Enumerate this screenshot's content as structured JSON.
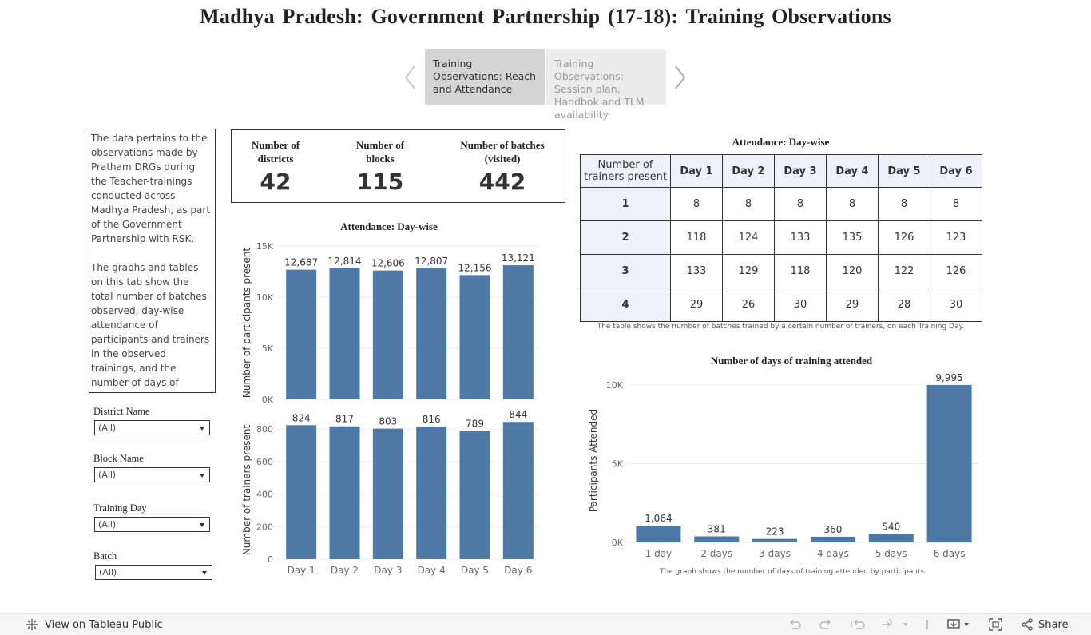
{
  "title": "Madhya Pradesh: Government Partnership (17-18): Training Observations",
  "story": {
    "points": [
      {
        "label": "Training Observations: Reach and Attendance"
      },
      {
        "label": "Training Observations: Session plan, Handbok and TLM availability"
      }
    ],
    "prev_icon": "chevron-left-icon",
    "next_icon": "chevron-right-icon"
  },
  "description": {
    "p1": "The data pertains to the observations made by Pratham DRGs during the Teacher-trainings conducted across Madhya Pradesh, as part of the Government Partnership with RSK.",
    "p2": "The graphs and tables on this tab show the total number of batches observed, day-wise attendance of participants and trainers in the observed trainings, and the number of days of training attended by the participants."
  },
  "filters": [
    {
      "label": "District Name",
      "value": "(All)"
    },
    {
      "label": "Block Name",
      "value": "(All)"
    },
    {
      "label": "Training Day",
      "value": "(All)"
    },
    {
      "label": "Batch",
      "value": "(All)"
    }
  ],
  "kpis": [
    {
      "label": "Number of districts",
      "value": "42"
    },
    {
      "label": "Number of blocks",
      "value": "115"
    },
    {
      "label": "Number of batches (visited)",
      "value": "442"
    }
  ],
  "attendance_table": {
    "title": "Attendance: Day-wise",
    "row_header": "Number of trainers present",
    "columns": [
      "Day 1",
      "Day 2",
      "Day 3",
      "Day 4",
      "Day 5",
      "Day 6"
    ],
    "rows": [
      {
        "label": "1",
        "values": [
          "8",
          "8",
          "8",
          "8",
          "8",
          "8"
        ]
      },
      {
        "label": "2",
        "values": [
          "118",
          "124",
          "133",
          "135",
          "126",
          "123"
        ]
      },
      {
        "label": "3",
        "values": [
          "133",
          "129",
          "118",
          "120",
          "122",
          "126"
        ]
      },
      {
        "label": "4",
        "values": [
          "29",
          "26",
          "30",
          "29",
          "28",
          "30"
        ]
      }
    ],
    "caption": "The table shows the number of batches trained by a certain number of trainers, on each Training Day."
  },
  "chart_data": [
    {
      "type": "bar",
      "title": "Attendance: Day-wise",
      "categories": [
        "Day 1",
        "Day 2",
        "Day 3",
        "Day 4",
        "Day 5",
        "Day 6"
      ],
      "values": [
        12687,
        12814,
        12606,
        12807,
        12156,
        13121
      ],
      "value_labels": [
        "12,687",
        "12,814",
        "12,606",
        "12,807",
        "12,156",
        "13,121"
      ],
      "ylabel": "Number of participants present",
      "ylim": [
        0,
        15000
      ],
      "ticks": [
        0,
        5000,
        10000,
        15000
      ],
      "tick_labels": [
        "0K",
        "5K",
        "10K",
        "15K"
      ],
      "color": "#4e79a7"
    },
    {
      "type": "bar",
      "categories": [
        "Day 1",
        "Day 2",
        "Day 3",
        "Day 4",
        "Day 5",
        "Day 6"
      ],
      "values": [
        824,
        817,
        803,
        816,
        789,
        844
      ],
      "value_labels": [
        "824",
        "817",
        "803",
        "816",
        "789",
        "844"
      ],
      "ylabel": "Number of trainers present",
      "ylim": [
        0,
        850
      ],
      "ticks": [
        0,
        200,
        400,
        600,
        800
      ],
      "tick_labels": [
        "0",
        "200",
        "400",
        "600",
        "800"
      ],
      "color": "#4e79a7"
    },
    {
      "type": "bar",
      "title": "Number of days of training attended",
      "categories": [
        "1 day",
        "2 days",
        "3 days",
        "4 days",
        "5 days",
        "6 days"
      ],
      "values": [
        1064,
        381,
        223,
        360,
        540,
        9995
      ],
      "value_labels": [
        "1,064",
        "381",
        "223",
        "360",
        "540",
        "9,995"
      ],
      "ylabel": "Participants Attended",
      "ylim": [
        0,
        10400
      ],
      "ticks": [
        0,
        5000,
        10000
      ],
      "tick_labels": [
        "0K",
        "5K",
        "10K"
      ],
      "caption": "The graph shows the number of days of training attended by participants.",
      "color": "#4e79a7"
    }
  ],
  "footer": {
    "view_label": "View on Tableau Public",
    "share_label": "Share"
  }
}
